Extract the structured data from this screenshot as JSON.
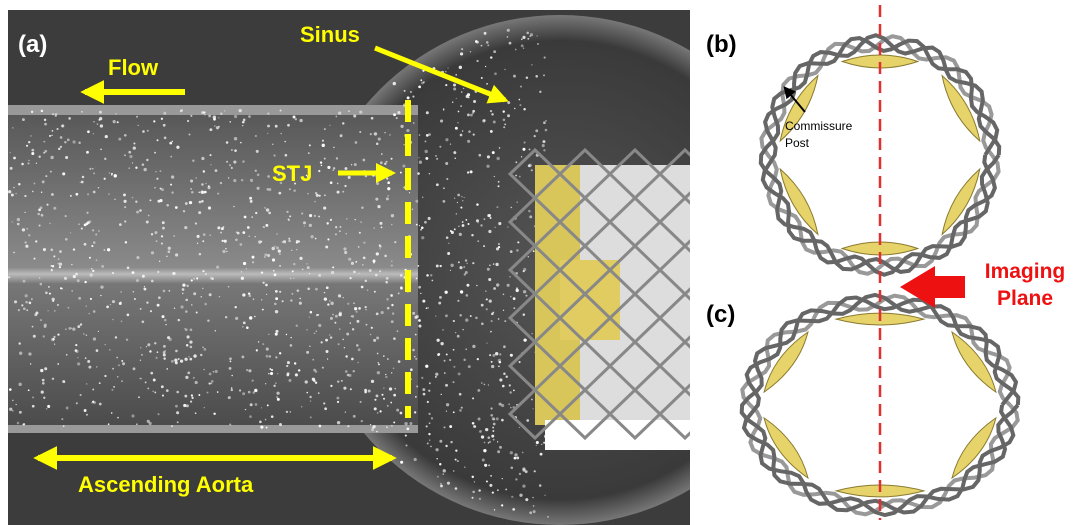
{
  "panels": {
    "a": {
      "label": "(a)",
      "flow": "Flow",
      "sinus": "Sinus",
      "stj": "STJ",
      "aorta": "Ascending Aorta"
    },
    "b": {
      "label": "(b)",
      "commissure": [
        "Commissure",
        "Post"
      ]
    },
    "c": {
      "label": "(c)"
    },
    "imaging_plane": [
      "Imaging",
      "Plane"
    ]
  }
}
